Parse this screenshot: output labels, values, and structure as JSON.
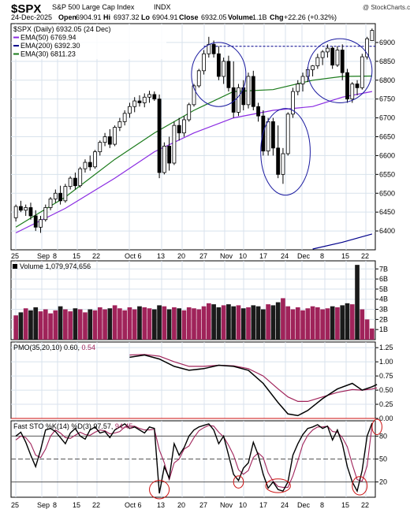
{
  "header": {
    "symbol": "$SPX",
    "name": "S&P 500 Large Cap Index",
    "exchange": "INDX",
    "date": "24-Dec-2025",
    "open_label": "Open",
    "open": "6904.91",
    "high_label": "Hi",
    "high": "6937.32",
    "low_label": "Lo",
    "low": "6904.91",
    "close_label": "Close",
    "close": "6932.05",
    "volume_label": "Volume",
    "volume": "1.1B",
    "change_label": "Chg",
    "change": "+22.26 (+0.32%)",
    "watermark": "@ StockCharts.com"
  },
  "price_legend": [
    {
      "label": "$SPX (Daily) 6932.05 (24 Dec)",
      "color": "#000000"
    },
    {
      "label": "EMA(50) 6769.94",
      "color": "#8a2be2"
    },
    {
      "label": "EMA(200) 6392.30",
      "color": "#00008b"
    },
    {
      "label": "EMA(30) 6811.23",
      "color": "#1a7a1a"
    }
  ],
  "volume_legend": "Volume 1,079,974,656",
  "pmo_legend": {
    "label": "PMO(35,20,10)",
    "value1": "0.60,",
    "value2": "0.54"
  },
  "sto_legend": {
    "label": "Fast STO %K(14) %D(3)",
    "value1": "97.57,",
    "value2": "94.45"
  },
  "colors": {
    "up_volume": "#a0235a",
    "down_volume": "#1a1a1a",
    "ema50": "#8a2be2",
    "ema200": "#00008b",
    "ema30": "#1a7a1a",
    "pmo_signal": "#a0235a",
    "sto_d": "#a0235a",
    "annotation_blue": "#1a1aa0",
    "annotation_red": "#cc1111",
    "grid": "#d8e2ec"
  },
  "x_axis_labels": [
    "25",
    "Sep",
    "8",
    "15",
    "22",
    "Oct 6",
    "13",
    "20",
    "27",
    "Nov",
    "10",
    "17",
    "24",
    "Dec",
    "8",
    "15",
    "22"
  ],
  "chart_data": [
    {
      "type": "candlestick",
      "title": "$SPX (Daily) 6932.05 (24 Dec)",
      "ylim": [
        6350,
        6950
      ],
      "yticks": [
        6400,
        6450,
        6500,
        6550,
        6600,
        6650,
        6700,
        6750,
        6800,
        6850,
        6900
      ],
      "resistance_level": 6890,
      "ohlc": [
        [
          6435,
          6470,
          6425,
          6465
        ],
        [
          6465,
          6480,
          6450,
          6455
        ],
        [
          6455,
          6470,
          6440,
          6462
        ],
        [
          6462,
          6475,
          6430,
          6440
        ],
        [
          6440,
          6455,
          6400,
          6410
        ],
        [
          6410,
          6440,
          6395,
          6430
        ],
        [
          6430,
          6470,
          6425,
          6462
        ],
        [
          6462,
          6490,
          6455,
          6485
        ],
        [
          6485,
          6510,
          6475,
          6500
        ],
        [
          6500,
          6520,
          6470,
          6480
        ],
        [
          6480,
          6525,
          6475,
          6518
        ],
        [
          6518,
          6545,
          6510,
          6540
        ],
        [
          6540,
          6555,
          6510,
          6520
        ],
        [
          6520,
          6570,
          6515,
          6565
        ],
        [
          6565,
          6590,
          6555,
          6582
        ],
        [
          6582,
          6600,
          6560,
          6570
        ],
        [
          6570,
          6615,
          6565,
          6610
        ],
        [
          6610,
          6640,
          6600,
          6635
        ],
        [
          6635,
          6660,
          6625,
          6650
        ],
        [
          6650,
          6670,
          6620,
          6630
        ],
        [
          6630,
          6680,
          6625,
          6675
        ],
        [
          6675,
          6700,
          6665,
          6690
        ],
        [
          6690,
          6720,
          6680,
          6712
        ],
        [
          6712,
          6740,
          6700,
          6730
        ],
        [
          6730,
          6755,
          6715,
          6745
        ],
        [
          6745,
          6760,
          6730,
          6740
        ],
        [
          6740,
          6765,
          6728,
          6755
        ],
        [
          6755,
          6772,
          6740,
          6762
        ],
        [
          6762,
          6770,
          6745,
          6750
        ],
        [
          6750,
          6762,
          6540,
          6555
        ],
        [
          6555,
          6635,
          6550,
          6625
        ],
        [
          6625,
          6650,
          6560,
          6580
        ],
        [
          6580,
          6690,
          6575,
          6680
        ],
        [
          6680,
          6700,
          6640,
          6660
        ],
        [
          6660,
          6705,
          6650,
          6695
        ],
        [
          6695,
          6740,
          6690,
          6735
        ],
        [
          6735,
          6790,
          6730,
          6785
        ],
        [
          6785,
          6830,
          6780,
          6825
        ],
        [
          6825,
          6880,
          6815,
          6870
        ],
        [
          6870,
          6915,
          6860,
          6895
        ],
        [
          6895,
          6905,
          6860,
          6870
        ],
        [
          6870,
          6890,
          6800,
          6810
        ],
        [
          6810,
          6860,
          6790,
          6850
        ],
        [
          6850,
          6865,
          6770,
          6780
        ],
        [
          6780,
          6850,
          6700,
          6715
        ],
        [
          6715,
          6790,
          6705,
          6780
        ],
        [
          6780,
          6800,
          6720,
          6735
        ],
        [
          6735,
          6820,
          6725,
          6810
        ],
        [
          6810,
          6825,
          6720,
          6730
        ],
        [
          6730,
          6740,
          6690,
          6705
        ],
        [
          6705,
          6720,
          6600,
          6612
        ],
        [
          6612,
          6700,
          6600,
          6690
        ],
        [
          6690,
          6700,
          6600,
          6620
        ],
        [
          6620,
          6680,
          6540,
          6550
        ],
        [
          6550,
          6620,
          6525,
          6605
        ],
        [
          6605,
          6715,
          6600,
          6710
        ],
        [
          6710,
          6780,
          6700,
          6770
        ],
        [
          6770,
          6800,
          6760,
          6790
        ],
        [
          6790,
          6820,
          6770,
          6810
        ],
        [
          6810,
          6835,
          6795,
          6828
        ],
        [
          6828,
          6840,
          6810,
          6838
        ],
        [
          6838,
          6870,
          6830,
          6860
        ],
        [
          6860,
          6880,
          6840,
          6875
        ],
        [
          6875,
          6895,
          6860,
          6885
        ],
        [
          6885,
          6890,
          6830,
          6840
        ],
        [
          6840,
          6890,
          6835,
          6880
        ],
        [
          6880,
          6895,
          6800,
          6820
        ],
        [
          6820,
          6830,
          6740,
          6750
        ],
        [
          6750,
          6795,
          6740,
          6790
        ],
        [
          6790,
          6800,
          6760,
          6780
        ],
        [
          6780,
          6870,
          6775,
          6862
        ],
        [
          6862,
          6915,
          6855,
          6910
        ],
        [
          6905,
          6937,
          6905,
          6932
        ]
      ],
      "ema50": {
        "start": 6420,
        "points": [
          [
            0,
            6395
          ],
          [
            10,
            6460
          ],
          [
            20,
            6540
          ],
          [
            28,
            6610
          ],
          [
            36,
            6660
          ],
          [
            44,
            6700
          ],
          [
            52,
            6720
          ],
          [
            60,
            6730
          ],
          [
            66,
            6755
          ],
          [
            72,
            6770
          ]
        ]
      },
      "ema200": {
        "start": 6000,
        "points": [
          [
            60,
            6352
          ],
          [
            66,
            6370
          ],
          [
            72,
            6392
          ]
        ]
      },
      "ema30": {
        "points": [
          [
            0,
            6410
          ],
          [
            10,
            6490
          ],
          [
            20,
            6590
          ],
          [
            28,
            6660
          ],
          [
            36,
            6720
          ],
          [
            44,
            6770
          ],
          [
            52,
            6775
          ],
          [
            60,
            6800
          ],
          [
            66,
            6810
          ],
          [
            72,
            6811
          ]
        ]
      }
    },
    {
      "type": "bar",
      "title": "Volume 1,079,974,656",
      "ylim": [
        0,
        7.8
      ],
      "ytick_labels": [
        "1B",
        "2B",
        "3B",
        "4B",
        "5B",
        "6B",
        "7B"
      ],
      "unit": "billions",
      "values": [
        2.4,
        2.7,
        3.1,
        2.9,
        3.2,
        2.8,
        3.0,
        2.6,
        2.9,
        3.3,
        3.0,
        2.8,
        3.1,
        3.0,
        2.7,
        3.0,
        2.9,
        3.2,
        3.0,
        3.1,
        3.4,
        3.1,
        2.9,
        3.2,
        3.0,
        3.3,
        3.2,
        3.1,
        3.0,
        3.4,
        3.3,
        3.0,
        3.2,
        3.1,
        2.9,
        3.2,
        3.1,
        3.0,
        3.3,
        3.6,
        3.5,
        3.2,
        3.4,
        3.5,
        3.3,
        3.4,
        3.1,
        3.2,
        3.4,
        3.3,
        3.0,
        3.5,
        3.4,
        3.7,
        4.1,
        3.3,
        3.0,
        3.2,
        2.9,
        3.1,
        3.3,
        3.2,
        3.0,
        3.1,
        3.3,
        3.2,
        3.4,
        3.6,
        3.5,
        7.4,
        3.0,
        2.0,
        1.1
      ],
      "up": [
        1,
        0,
        1,
        0,
        0,
        1,
        1,
        1,
        1,
        0,
        1,
        1,
        0,
        1,
        1,
        0,
        1,
        1,
        1,
        0,
        1,
        1,
        1,
        1,
        1,
        0,
        1,
        1,
        0,
        0,
        1,
        0,
        1,
        0,
        1,
        1,
        1,
        1,
        1,
        1,
        0,
        0,
        1,
        0,
        0,
        1,
        0,
        1,
        0,
        0,
        0,
        1,
        0,
        0,
        1,
        1,
        1,
        1,
        1,
        1,
        1,
        1,
        1,
        1,
        0,
        1,
        0,
        0,
        1,
        0,
        1,
        1,
        1
      ]
    },
    {
      "type": "line",
      "title": "PMO(35,20,10)",
      "ylim": [
        0.0,
        1.35
      ],
      "yticks": [
        0.0,
        0.25,
        0.5,
        0.75,
        1.0,
        1.25
      ],
      "series": [
        {
          "name": "PMO(35,20,10)",
          "points": [
            [
              23,
              1.08
            ],
            [
              26,
              1.12
            ],
            [
              29,
              1.05
            ],
            [
              32,
              0.92
            ],
            [
              35,
              0.85
            ],
            [
              38,
              0.88
            ],
            [
              41,
              0.94
            ],
            [
              44,
              0.92
            ],
            [
              47,
              0.85
            ],
            [
              50,
              0.62
            ],
            [
              53,
              0.28
            ],
            [
              55,
              0.08
            ],
            [
              57,
              0.05
            ],
            [
              59,
              0.14
            ],
            [
              62,
              0.35
            ],
            [
              65,
              0.52
            ],
            [
              68,
              0.62
            ],
            [
              70,
              0.5
            ],
            [
              72,
              0.56
            ],
            [
              73,
              0.6
            ]
          ]
        },
        {
          "name": "signal",
          "points": [
            [
              23,
              1.12
            ],
            [
              26,
              1.13
            ],
            [
              29,
              1.1
            ],
            [
              32,
              1.0
            ],
            [
              35,
              0.92
            ],
            [
              38,
              0.92
            ],
            [
              41,
              0.94
            ],
            [
              44,
              0.93
            ],
            [
              47,
              0.88
            ],
            [
              50,
              0.75
            ],
            [
              53,
              0.52
            ],
            [
              55,
              0.38
            ],
            [
              57,
              0.3
            ],
            [
              59,
              0.3
            ],
            [
              62,
              0.38
            ],
            [
              65,
              0.46
            ],
            [
              68,
              0.51
            ],
            [
              70,
              0.5
            ],
            [
              72,
              0.52
            ],
            [
              73,
              0.54
            ]
          ]
        }
      ],
      "zero_line": 0.0
    },
    {
      "type": "line",
      "title": "Fast STO %K(14) %D(3)",
      "ylim": [
        0,
        100
      ],
      "yticks": [
        20,
        50,
        80
      ],
      "reference_lines": [
        20,
        50,
        80
      ],
      "series": [
        {
          "name": "%K(14)",
          "values": [
            80,
            85,
            72,
            55,
            40,
            62,
            88,
            90,
            86,
            78,
            70,
            84,
            90,
            80,
            76,
            88,
            92,
            84,
            86,
            78,
            88,
            92,
            96,
            90,
            92,
            88,
            84,
            92,
            90,
            5,
            40,
            25,
            70,
            55,
            65,
            80,
            88,
            92,
            94,
            96,
            88,
            70,
            80,
            55,
            30,
            22,
            38,
            45,
            72,
            55,
            30,
            12,
            20,
            10,
            8,
            20,
            55,
            70,
            82,
            90,
            92,
            95,
            90,
            93,
            75,
            88,
            70,
            40,
            20,
            8,
            35,
            80,
            97
          ]
        },
        {
          "name": "%D(3)",
          "values": [
            75,
            80,
            78,
            70,
            55,
            52,
            63,
            80,
            88,
            84,
            78,
            77,
            81,
            85,
            82,
            81,
            85,
            88,
            87,
            83,
            84,
            86,
            92,
            93,
            93,
            90,
            88,
            88,
            89,
            62,
            45,
            23,
            45,
            50,
            63,
            67,
            78,
            87,
            91,
            94,
            93,
            85,
            79,
            68,
            55,
            36,
            30,
            35,
            52,
            58,
            52,
            32,
            21,
            14,
            13,
            13,
            28,
            48,
            69,
            81,
            88,
            92,
            92,
            93,
            86,
            85,
            78,
            66,
            43,
            23,
            21,
            41,
            94
          ]
        }
      ]
    }
  ],
  "annotations": [
    {
      "kind": "circle",
      "color": "#1a1aa0",
      "panel": "price",
      "center_bar": 41,
      "center_value": 6815,
      "rx_bars": 5.5,
      "ry_value": 85
    },
    {
      "kind": "circle",
      "color": "#1a1aa0",
      "panel": "price",
      "center_bar": 54.5,
      "center_value": 6610,
      "rx_bars": 5,
      "ry_value": 115
    },
    {
      "kind": "circle",
      "color": "#1a1aa0",
      "panel": "price",
      "center_bar": 65.5,
      "center_value": 6825,
      "rx_bars": 6.5,
      "ry_value": 85
    },
    {
      "kind": "circle",
      "color": "#cc1111",
      "panel": "sto",
      "center_bar": 29,
      "center_value": 10,
      "rx_bars": 2,
      "ry_value": 12
    },
    {
      "kind": "circle",
      "color": "#cc1111",
      "panel": "sto",
      "center_bar": 45,
      "center_value": 20,
      "rx_bars": 1,
      "ry_value": 8
    },
    {
      "kind": "circle",
      "color": "#cc1111",
      "panel": "sto",
      "center_bar": 53,
      "center_value": 15,
      "rx_bars": 2.5,
      "ry_value": 9
    },
    {
      "kind": "circle",
      "color": "#cc1111",
      "panel": "sto",
      "center_bar": 69.5,
      "center_value": 15,
      "rx_bars": 1.5,
      "ry_value": 12
    },
    {
      "kind": "circle",
      "color": "#cc1111",
      "panel": "sto",
      "center_bar": 73,
      "center_value": 92,
      "rx_bars": 1,
      "ry_value": 10
    }
  ]
}
